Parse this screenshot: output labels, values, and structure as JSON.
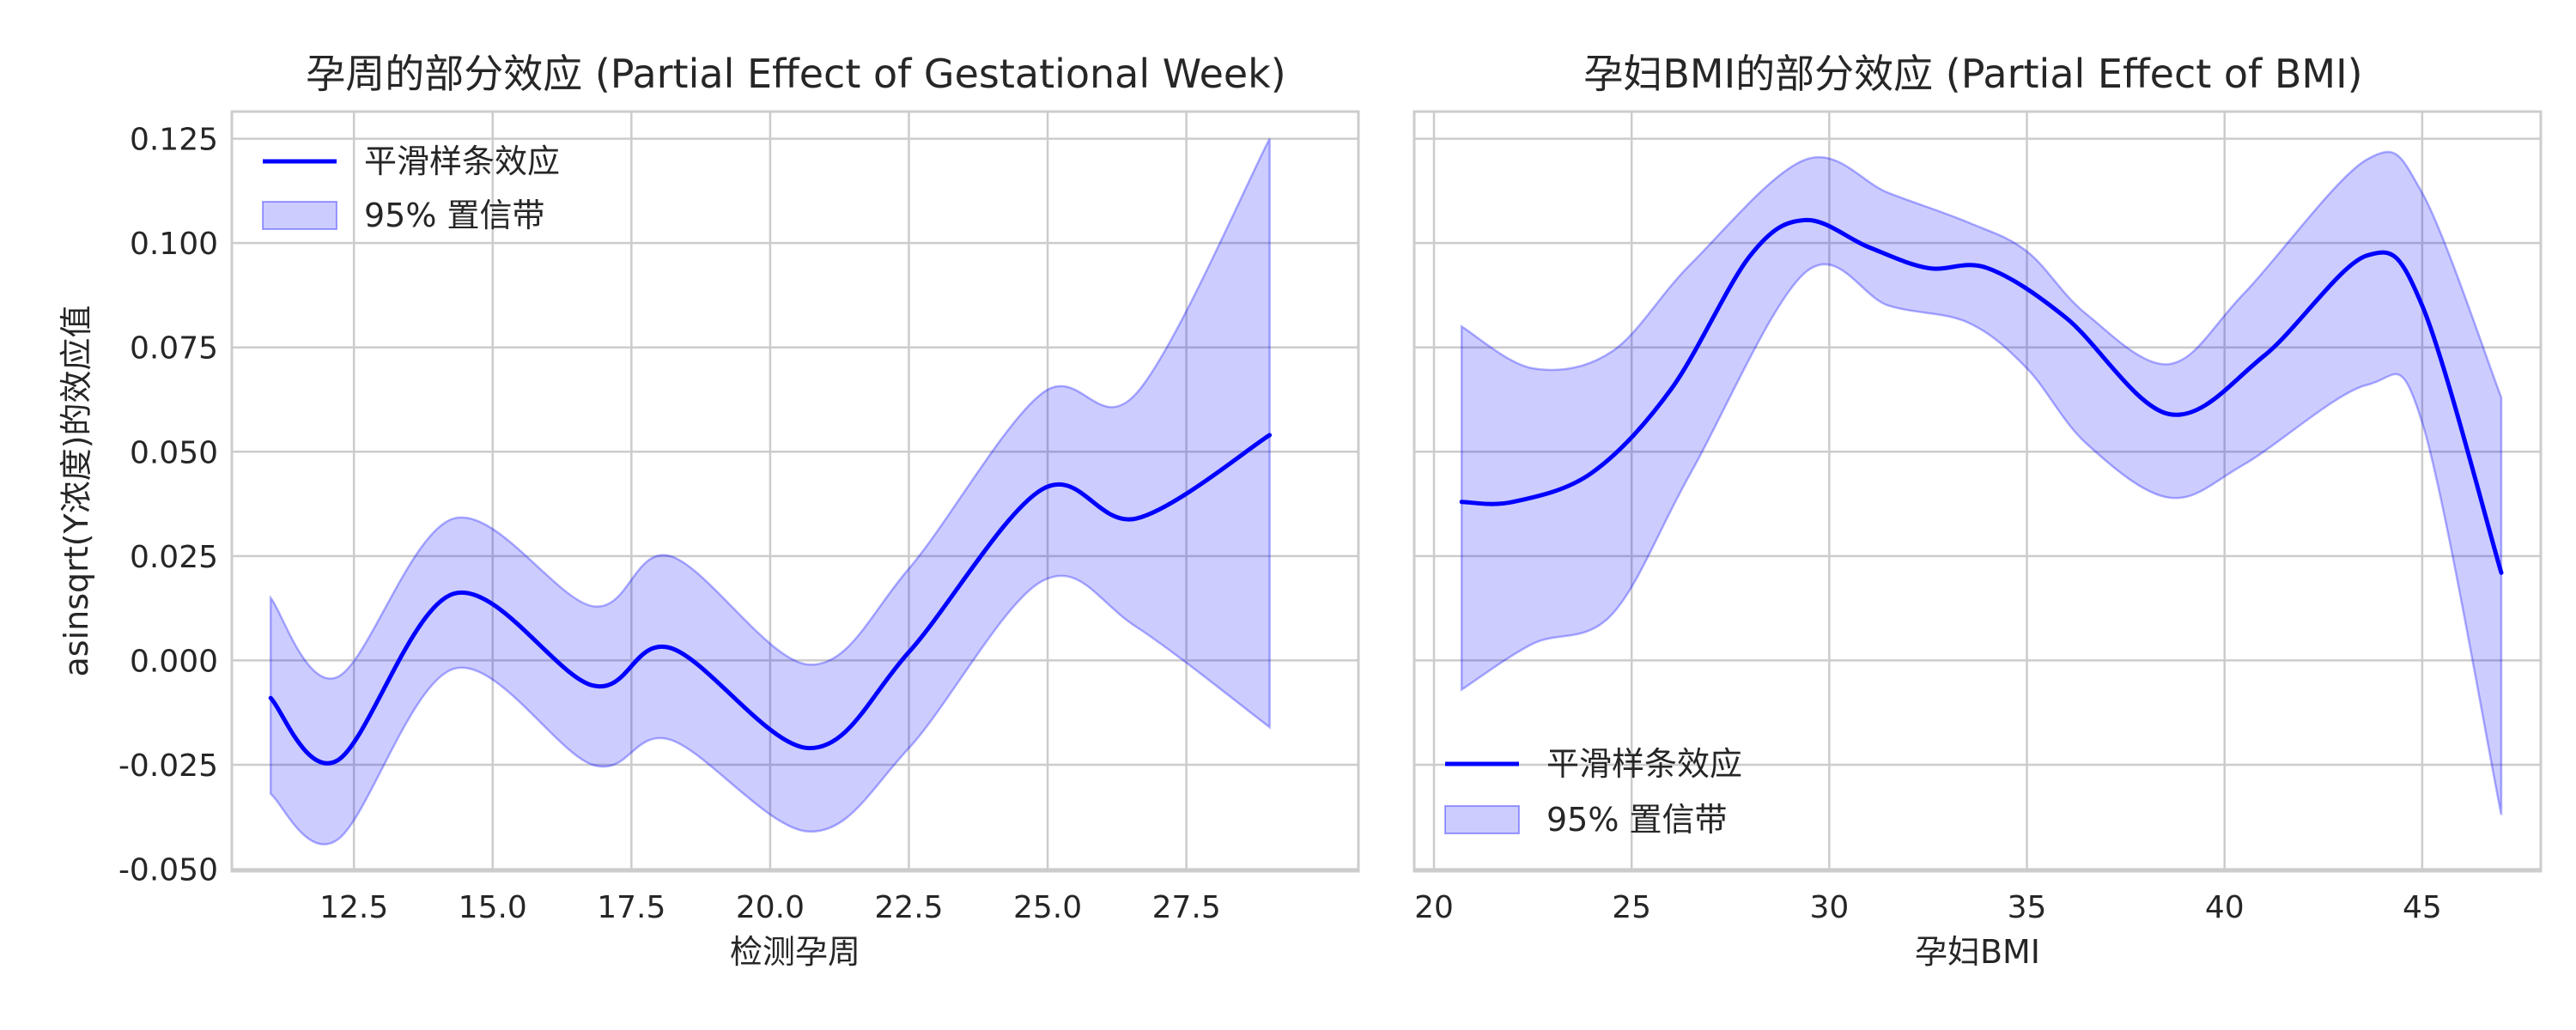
{
  "chart_data": [
    {
      "type": "line",
      "title": "孕周的部分效应 (Partial Effect of Gestational Week)",
      "xlabel": "检测孕周",
      "ylabel": "asinsqrt(Y浓度)的效应值",
      "xlim": [
        10.3,
        30.6
      ],
      "ylim": [
        -0.0505,
        0.1315
      ],
      "xticks": [
        12.5,
        15.0,
        17.5,
        20.0,
        22.5,
        25.0,
        27.5
      ],
      "xtick_labels": [
        "12.5",
        "15.0",
        "17.5",
        "20.0",
        "22.5",
        "25.0",
        "27.5"
      ],
      "yticks": [
        -0.05,
        -0.025,
        0.0,
        0.025,
        0.05,
        0.075,
        0.1,
        0.125
      ],
      "ytick_labels": [
        "-0.050",
        "-0.025",
        "0.000",
        "0.025",
        "0.050",
        "0.075",
        "0.100",
        "0.125"
      ],
      "grid": true,
      "legend": {
        "position": "upper-left",
        "entries": [
          "平滑样条效应",
          "95% 置信带"
        ]
      },
      "series": [
        {
          "name": "平滑样条效应",
          "color": "#0000ff",
          "x": [
            11.0,
            12.2,
            14.3,
            16.8,
            18.2,
            20.7,
            22.5,
            24.9,
            26.6,
            29.0
          ],
          "y": [
            -0.009,
            -0.024,
            0.016,
            -0.006,
            0.003,
            -0.021,
            0.002,
            0.041,
            0.034,
            0.054
          ]
        },
        {
          "name": "95% 置信带",
          "type": "band",
          "color": "#0000ff",
          "x": [
            11.0,
            12.2,
            14.3,
            16.8,
            18.2,
            20.7,
            22.5,
            24.9,
            26.6,
            29.0
          ],
          "upper": [
            0.015,
            -0.004,
            0.034,
            0.013,
            0.025,
            -0.001,
            0.022,
            0.064,
            0.064,
            0.125
          ],
          "lower": [
            -0.032,
            -0.043,
            -0.002,
            -0.025,
            -0.019,
            -0.041,
            -0.021,
            0.019,
            0.008,
            -0.016
          ]
        }
      ]
    },
    {
      "type": "line",
      "title": "孕妇BMI的部分效应 (Partial Effect of BMI)",
      "xlabel": "孕妇BMI",
      "ylabel": "",
      "xlim": [
        19.5,
        48.0
      ],
      "ylim": [
        -0.0505,
        0.1315
      ],
      "xticks": [
        20,
        25,
        30,
        35,
        40,
        45
      ],
      "xtick_labels": [
        "20",
        "25",
        "30",
        "35",
        "40",
        "45"
      ],
      "yticks": [
        -0.05,
        -0.025,
        0.0,
        0.025,
        0.05,
        0.075,
        0.1,
        0.125
      ],
      "ytick_labels": [],
      "grid": true,
      "legend": {
        "position": "lower-left",
        "entries": [
          "平滑样条效应",
          "95% 置信带"
        ]
      },
      "series": [
        {
          "name": "平滑样条效应",
          "color": "#0000ff",
          "x": [
            20.7,
            22.0,
            24.0,
            26.0,
            28.0,
            29.4,
            31.0,
            32.5,
            34.0,
            36.0,
            38.6,
            41.0,
            43.6,
            45.0,
            47.0
          ],
          "y": [
            0.038,
            0.038,
            0.045,
            0.065,
            0.097,
            0.1055,
            0.099,
            0.094,
            0.094,
            0.082,
            0.059,
            0.073,
            0.097,
            0.085,
            0.021
          ]
        },
        {
          "name": "95% 置信带",
          "type": "band",
          "color": "#0000ff",
          "x": [
            20.7,
            22.5,
            24.5,
            26.5,
            29.4,
            31.5,
            33.5,
            35.0,
            36.5,
            38.6,
            40.5,
            43.6,
            45.0,
            47.0
          ],
          "upper": [
            0.08,
            0.07,
            0.074,
            0.095,
            0.12,
            0.112,
            0.105,
            0.098,
            0.083,
            0.071,
            0.088,
            0.12,
            0.112,
            0.063
          ],
          "lower": [
            -0.007,
            0.004,
            0.011,
            0.045,
            0.093,
            0.085,
            0.081,
            0.07,
            0.052,
            0.039,
            0.047,
            0.066,
            0.057,
            -0.037
          ]
        }
      ]
    }
  ]
}
